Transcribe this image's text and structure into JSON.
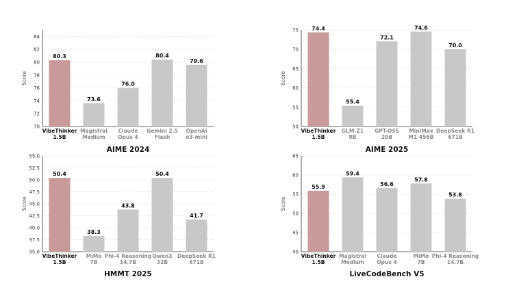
{
  "chart_data": [
    {
      "type": "bar",
      "title": "AIME 2024",
      "ylabel": "Score",
      "ylim": [
        70,
        85
      ],
      "yticks": [
        "70",
        "72",
        "74",
        "76",
        "78",
        "80",
        "82",
        "84"
      ],
      "grid": true,
      "categories": [
        [
          "VibeThinker",
          "1.5B"
        ],
        [
          "Magistral",
          "Medium"
        ],
        [
          "Claude",
          "Opus 4"
        ],
        [
          "Gemini 2.5",
          "Flash"
        ],
        [
          "OpenAI",
          "o3-mini"
        ]
      ],
      "values": [
        80.3,
        73.6,
        76.0,
        80.4,
        79.6
      ],
      "value_labels": [
        "80.3",
        "73.6",
        "76.0",
        "80.4",
        "79.6"
      ],
      "highlight_index": 0
    },
    {
      "type": "bar",
      "title": "AIME 2025",
      "ylabel": "Score",
      "ylim": [
        50,
        75
      ],
      "yticks": [
        "50",
        "55",
        "60",
        "65",
        "70",
        "75"
      ],
      "grid": true,
      "categories": [
        [
          "VibeThinker",
          "1.5B"
        ],
        [
          "GLM-Z1",
          "9B"
        ],
        [
          "GPT-OSS",
          "20B"
        ],
        [
          "MiniMax",
          "M1 456B"
        ],
        [
          "DeepSeek R1",
          "671B"
        ]
      ],
      "values": [
        74.4,
        55.4,
        72.1,
        74.6,
        70.0
      ],
      "value_labels": [
        "74.4",
        "55.4",
        "72.1",
        "74.6",
        "70.0"
      ],
      "highlight_index": 0
    },
    {
      "type": "bar",
      "title": "HMMT 2025",
      "ylabel": "Score",
      "ylim": [
        35,
        55
      ],
      "yticks": [
        "35.0",
        "37.5",
        "40.0",
        "42.5",
        "45.0",
        "47.5",
        "50.0",
        "52.5",
        "55.0"
      ],
      "grid": true,
      "categories": [
        [
          "VibeThinker",
          "1.5B"
        ],
        [
          "MiMo",
          "7B"
        ],
        [
          "Phi-4 Reasoning",
          "14.7B"
        ],
        [
          "Qwen3",
          "32B"
        ],
        [
          "DeepSeek R1",
          "671B"
        ]
      ],
      "values": [
        50.4,
        38.3,
        43.8,
        50.4,
        41.7
      ],
      "value_labels": [
        "50.4",
        "38.3",
        "43.8",
        "50.4",
        "41.7"
      ],
      "highlight_index": 0
    },
    {
      "type": "bar",
      "title": "LiveCodeBench V5",
      "ylabel": "Score",
      "ylim": [
        40,
        65
      ],
      "yticks": [
        "40",
        "45",
        "50",
        "55",
        "60",
        "65"
      ],
      "grid": true,
      "categories": [
        [
          "VibeThinker",
          "1.5B"
        ],
        [
          "Magistral",
          "Medium"
        ],
        [
          "Claude",
          "Opus 4"
        ],
        [
          "MiMo",
          "7B"
        ],
        [
          "Phi-4 Reasoning",
          "14.7B"
        ]
      ],
      "values": [
        55.9,
        59.4,
        56.6,
        57.8,
        53.8
      ],
      "value_labels": [
        "55.9",
        "59.4",
        "56.6",
        "57.8",
        "53.8"
      ],
      "highlight_index": 0
    }
  ],
  "colors": {
    "highlight_bar": "#c99a9a",
    "other_bar": "#c8c8c8",
    "highlight_label": "#111111",
    "other_label": "#8a8a8a",
    "grid": "#d9d9d9",
    "axis": "#333333"
  }
}
